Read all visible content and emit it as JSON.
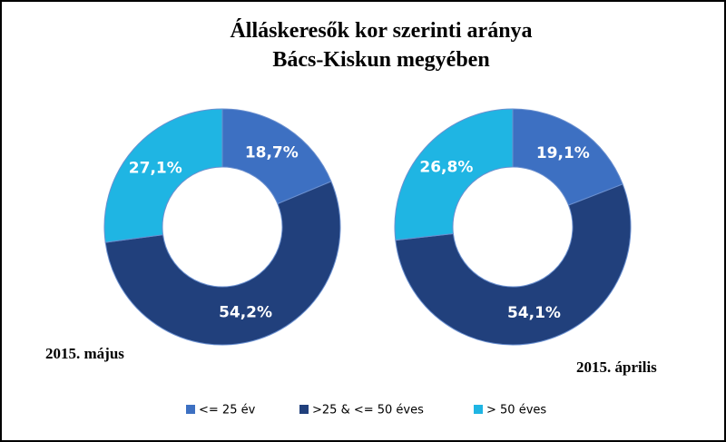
{
  "title": "Álláskeresők kor szerinti aránya Bács-Kiskun megyében",
  "legend": {
    "categories": [
      "<= 25 év",
      ">25 & <= 50 éves",
      "> 50 éves"
    ],
    "colors": [
      "#3d70c2",
      "#21407c",
      "#1fb5e3"
    ]
  },
  "chart_data": [
    {
      "type": "donut",
      "label": "2015. május",
      "values": [
        18.7,
        54.2,
        27.1
      ],
      "value_labels": [
        "18,7%",
        "54,2%",
        "27,1%"
      ]
    },
    {
      "type": "donut",
      "label": "2015. április",
      "values": [
        19.1,
        54.1,
        26.8
      ],
      "value_labels": [
        "19,1%",
        "54,1%",
        "26,8%"
      ]
    }
  ]
}
